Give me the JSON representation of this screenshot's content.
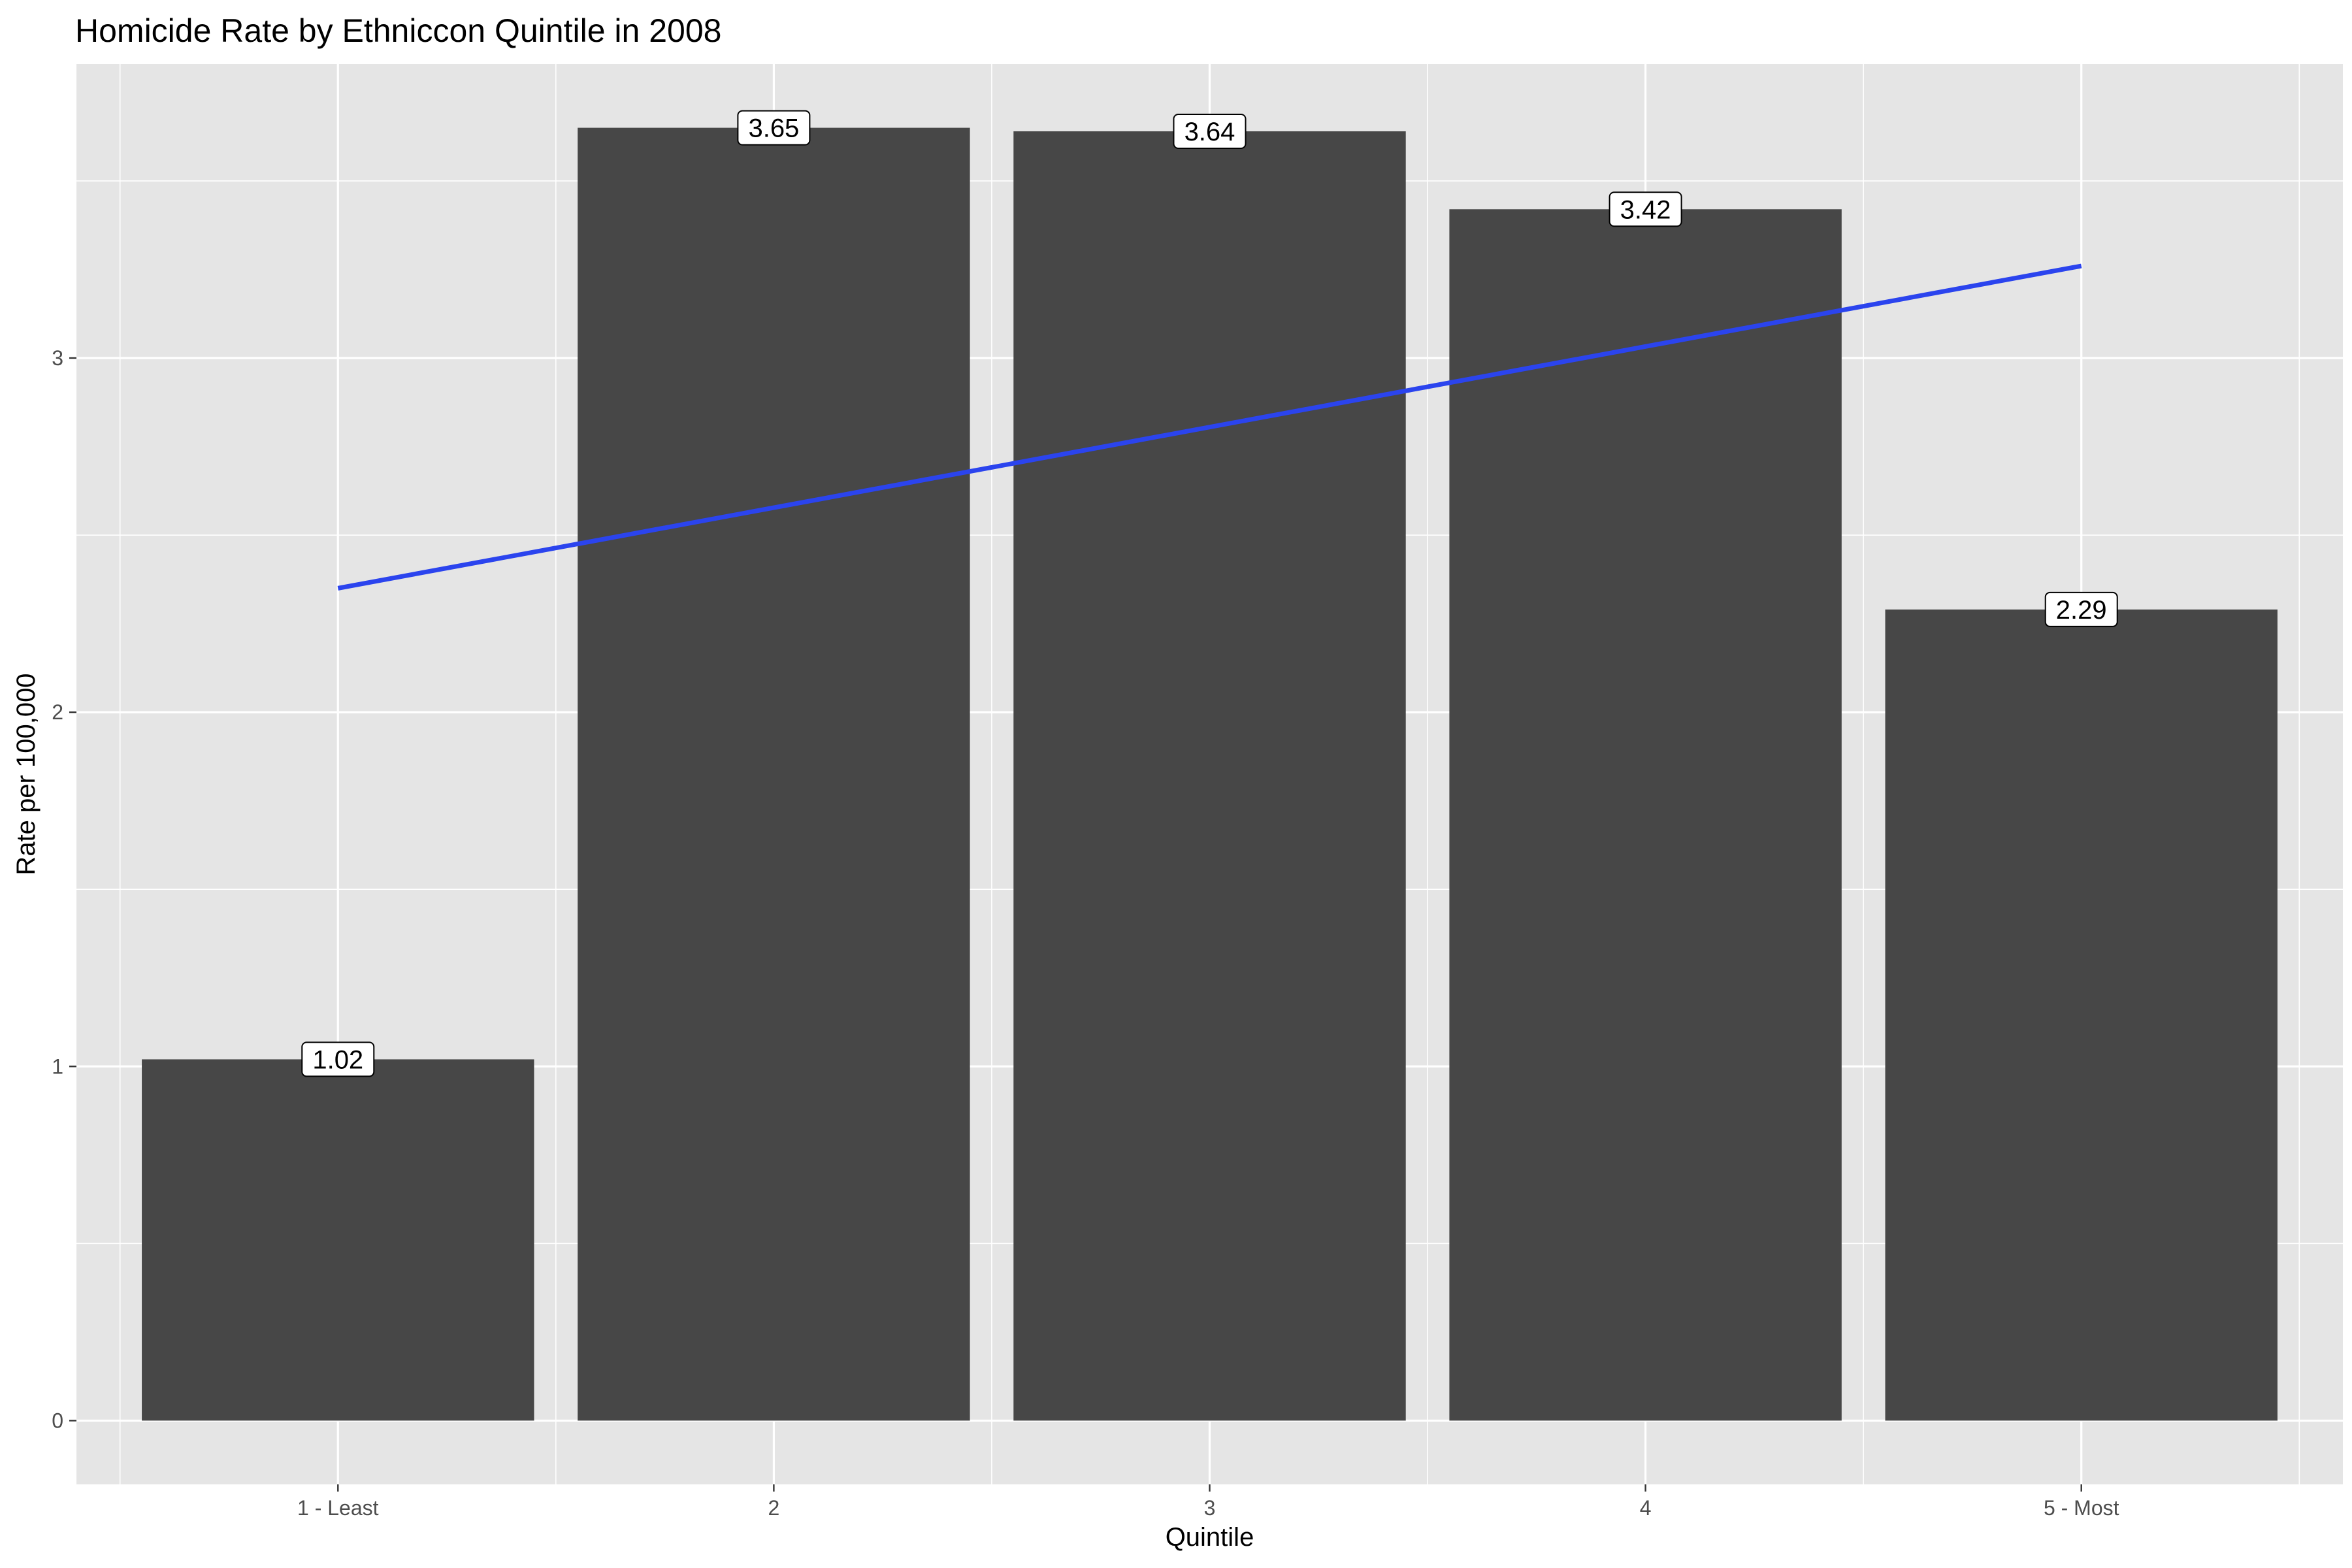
{
  "chart_data": {
    "type": "bar",
    "title": "Homicide Rate by Ethniccon Quintile in 2008",
    "xlabel": "Quintile",
    "ylabel": "Rate per 100,000",
    "categories": [
      "1 - Least",
      "2",
      "3",
      "4",
      "5 - Most"
    ],
    "values": [
      1.02,
      3.65,
      3.64,
      3.42,
      2.29
    ],
    "data_labels": [
      "1.02",
      "3.65",
      "3.64",
      "3.42",
      "2.29"
    ],
    "yticks": [
      0,
      1,
      2,
      3
    ],
    "ytick_labels": [
      "0",
      "1",
      "2",
      "3"
    ],
    "ylim": [
      -0.18,
      3.83
    ],
    "grid": true,
    "legend": "none",
    "trend_line": {
      "type": "linear",
      "start": 2.35,
      "end": 3.26
    },
    "colors": {
      "panel_background": "#e5e5e5",
      "grid_line": "#ffffff",
      "bar_fill": "#474747",
      "trend_line": "#2b44ee",
      "label_fill": "#ffffff",
      "label_border": "#000000",
      "tick_label": "#4d4d4d",
      "tick_mark": "#333333"
    }
  }
}
